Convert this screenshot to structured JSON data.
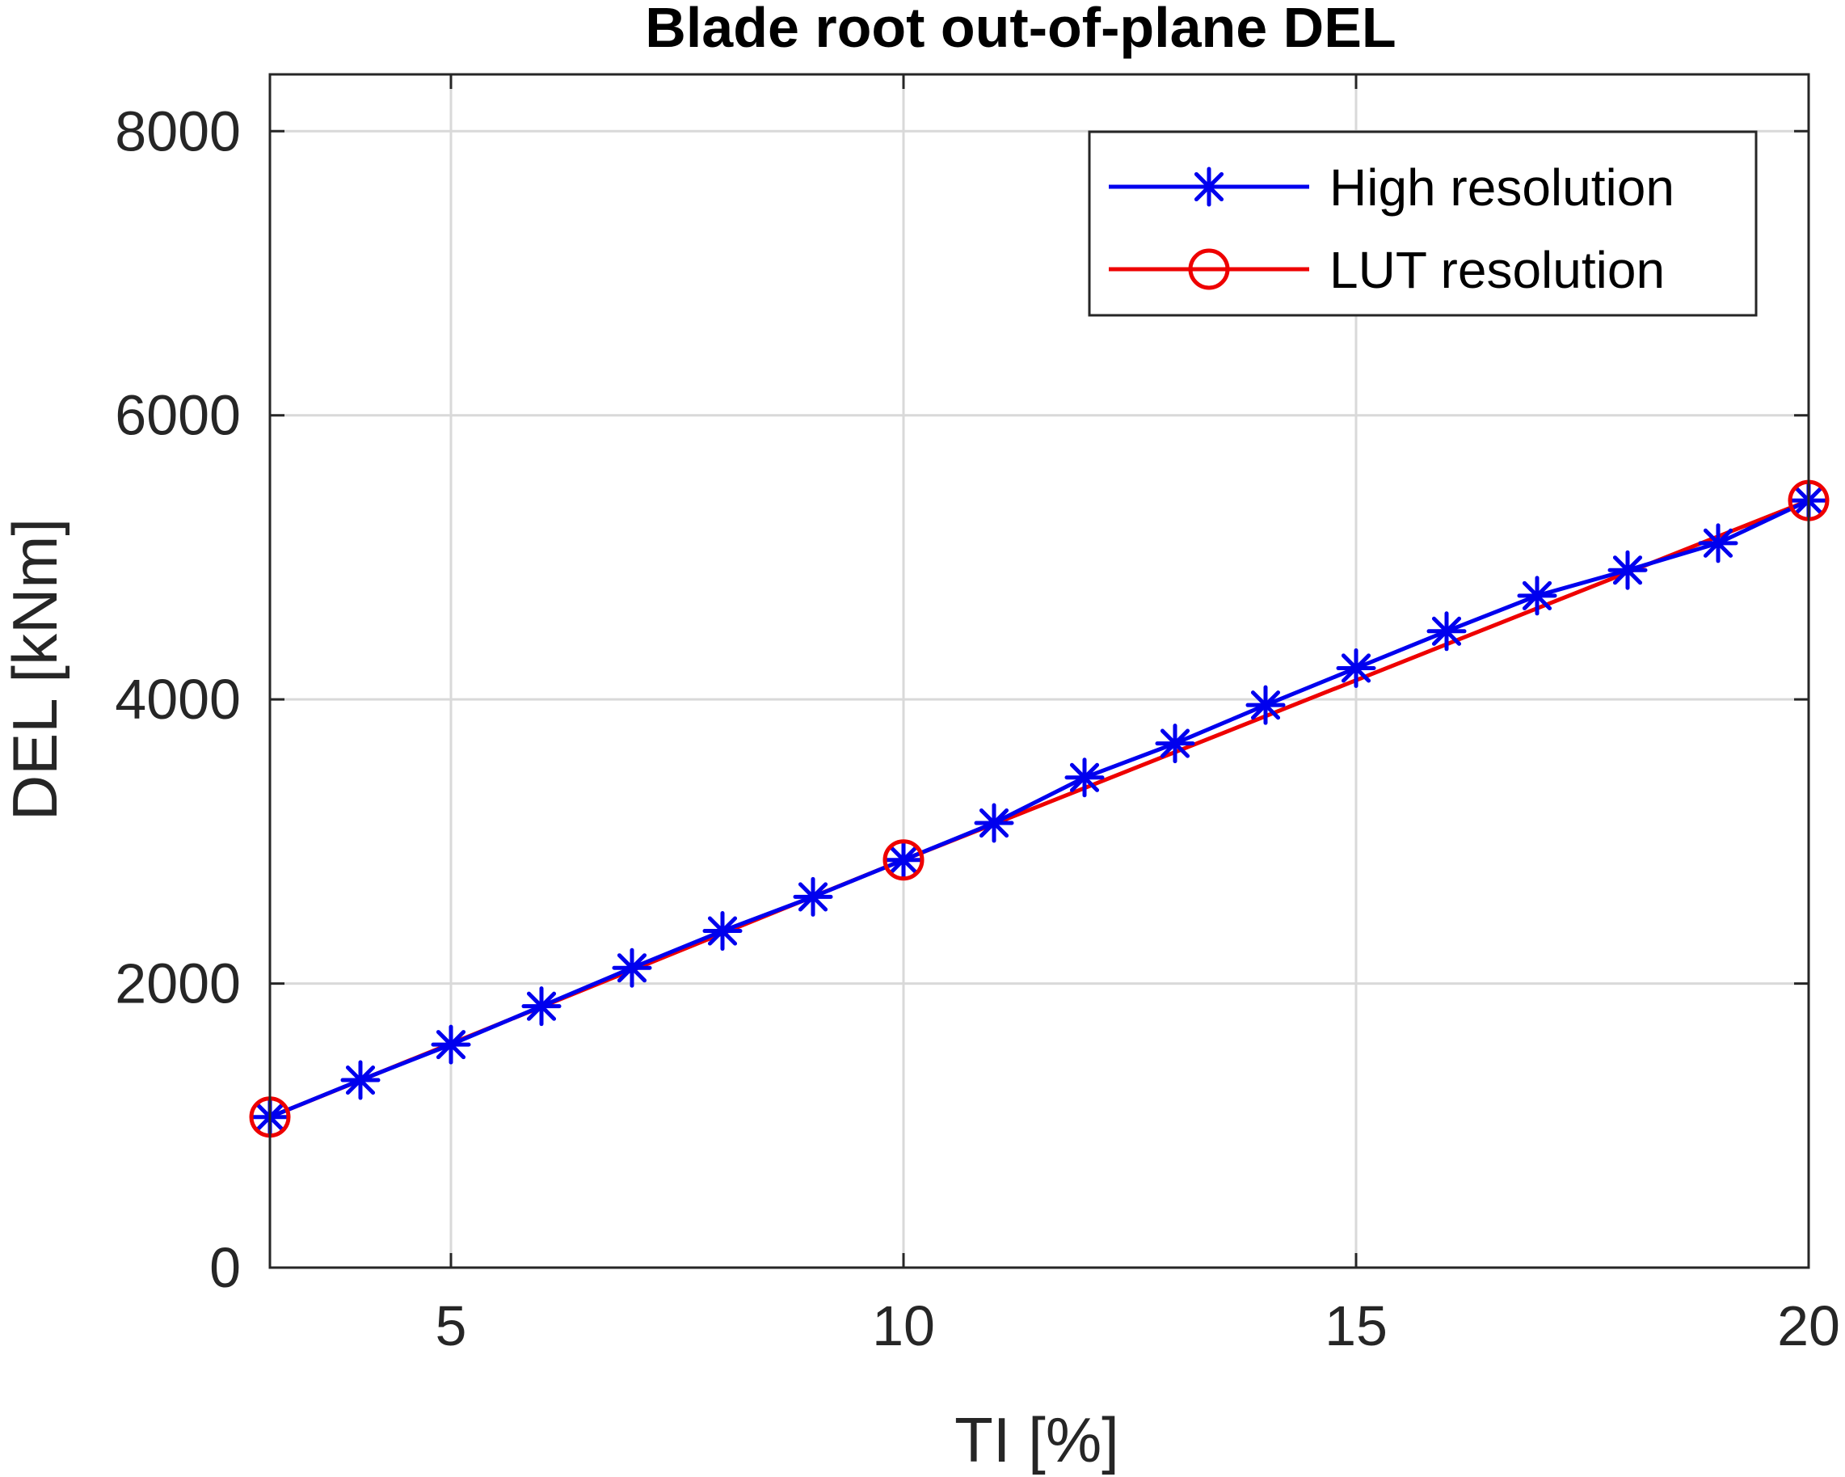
{
  "colors": {
    "background": "#ffffff",
    "axes": "#262626",
    "grid": "#d9d9d9",
    "high_resolution": "#0000ee",
    "lut_resolution": "#ee0000"
  },
  "chart_data": {
    "type": "line",
    "title": "Blade root out-of-plane DEL",
    "xlabel": "TI [%]",
    "ylabel": "DEL [kNm]",
    "xlim": [
      3,
      20
    ],
    "ylim": [
      0,
      8400
    ],
    "xticks": [
      5,
      10,
      15,
      20
    ],
    "yticks": [
      0,
      2000,
      4000,
      6000,
      8000
    ],
    "xtick_labels": [
      "5",
      "10",
      "15",
      "20"
    ],
    "ytick_labels": [
      "0",
      "2000",
      "4000",
      "6000",
      "8000"
    ],
    "grid": true,
    "legend_location": "top-right",
    "series": [
      {
        "name": "High resolution",
        "color": "#0000ee",
        "marker": "asterisk",
        "x": [
          3,
          4,
          5,
          6,
          7,
          8,
          9,
          10,
          11,
          12,
          13,
          14,
          15,
          16,
          17,
          18,
          19,
          20
        ],
        "y": [
          1060,
          1320,
          1570,
          1840,
          2110,
          2370,
          2610,
          2870,
          3130,
          3450,
          3690,
          3960,
          4220,
          4480,
          4730,
          4910,
          5100,
          5400
        ]
      },
      {
        "name": "LUT resolution",
        "color": "#ee0000",
        "marker": "circle",
        "x": [
          3,
          10,
          20
        ],
        "y": [
          1060,
          2870,
          5400
        ]
      }
    ]
  }
}
